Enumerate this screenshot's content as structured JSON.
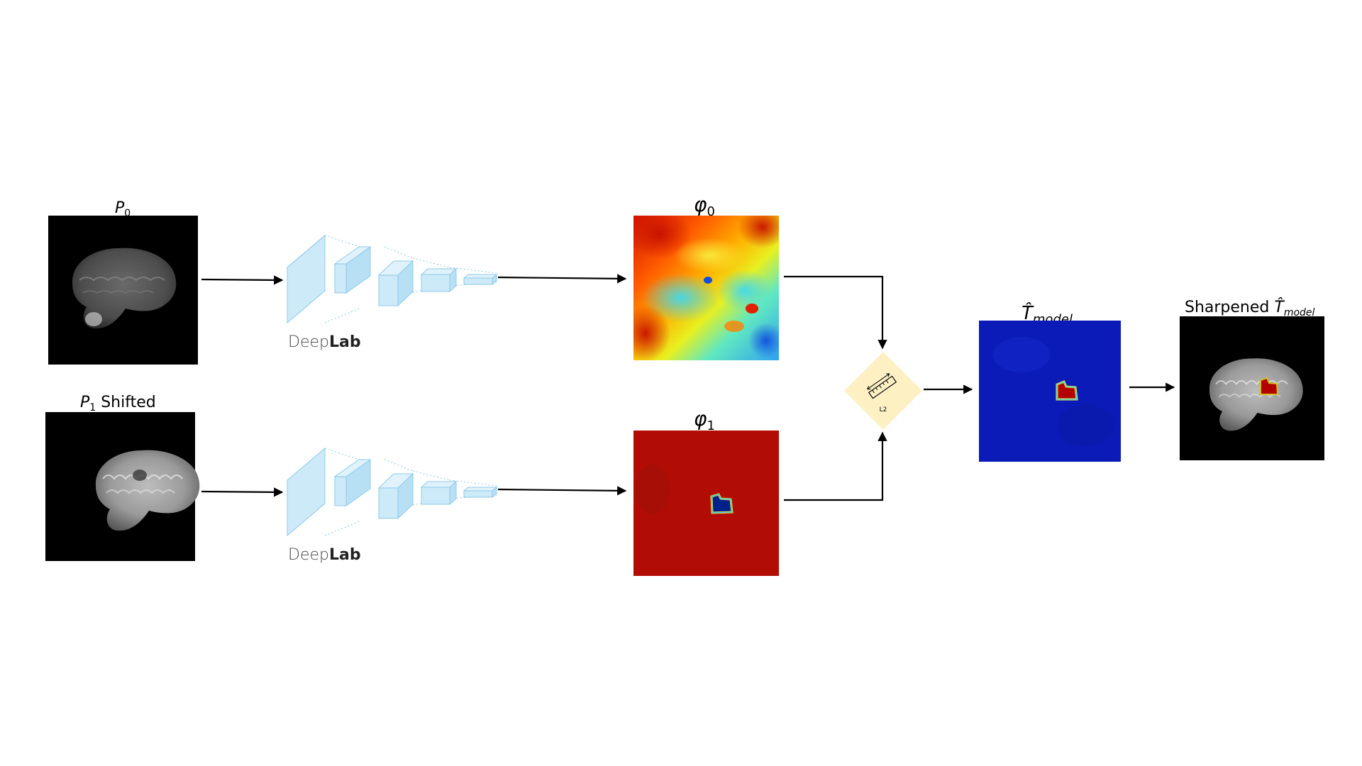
{
  "labels": {
    "p0": {
      "main": "P",
      "sub": "0",
      "tail": ""
    },
    "p1": {
      "main": "P",
      "sub": "1",
      "tail": " Shifted"
    },
    "phi0": {
      "main": "φ",
      "sub": "0"
    },
    "phi1": {
      "main": "φ",
      "sub": "1"
    },
    "t_model": {
      "main": "T̂",
      "sub": "model"
    },
    "sharpened": {
      "prefix": "Sharpened ",
      "main": "T̂",
      "sub": "model"
    }
  },
  "encoders": [
    {
      "brand_light": "Deep",
      "brand_bold": "Lab"
    },
    {
      "brand_light": "Deep",
      "brand_bold": "Lab"
    }
  ],
  "comparator": {
    "label": "L2",
    "icon": "ruler-icon",
    "fill": "#fdf1c4"
  },
  "colors": {
    "cube_fill": "#cdeaf9",
    "cube_stroke": "#8ec9e8",
    "arrow": "#000000",
    "tumor_red": "#b30000",
    "field_blue": "#0b1bb8",
    "field_red": "#b10d05"
  }
}
